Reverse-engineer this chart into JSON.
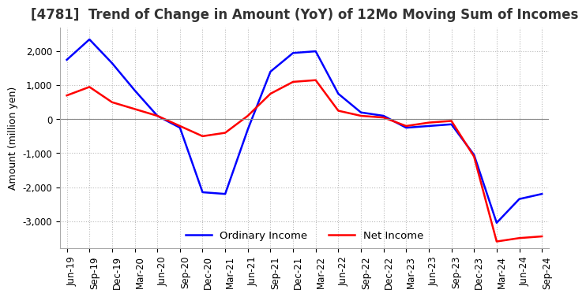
{
  "title": "[4781]  Trend of Change in Amount (YoY) of 12Mo Moving Sum of Incomes",
  "ylabel": "Amount (million yen)",
  "x_labels": [
    "Jun-19",
    "Sep-19",
    "Dec-19",
    "Mar-20",
    "Jun-20",
    "Sep-20",
    "Dec-20",
    "Mar-21",
    "Jun-21",
    "Sep-21",
    "Dec-21",
    "Mar-22",
    "Jun-22",
    "Sep-22",
    "Dec-22",
    "Mar-23",
    "Jun-23",
    "Sep-23",
    "Dec-23",
    "Mar-24",
    "Jun-24",
    "Sep-24"
  ],
  "ordinary_income": [
    1750,
    2350,
    1650,
    850,
    100,
    -250,
    -2150,
    -2200,
    -300,
    1400,
    1950,
    2000,
    750,
    200,
    100,
    -250,
    -200,
    -150,
    -1050,
    -3050,
    -2350,
    -2200
  ],
  "net_income": [
    700,
    950,
    500,
    300,
    100,
    -200,
    -500,
    -400,
    100,
    750,
    1100,
    1150,
    250,
    100,
    50,
    -200,
    -100,
    -50,
    -1100,
    -3600,
    -3500,
    -3450
  ],
  "ordinary_income_color": "#0000ff",
  "net_income_color": "#ff0000",
  "ylim": [
    -3800,
    2700
  ],
  "yticks": [
    -3000,
    -2000,
    -1000,
    0,
    1000,
    2000
  ],
  "background_color": "#ffffff",
  "grid_color": "#bbbbbb",
  "title_fontsize": 12,
  "label_fontsize": 9,
  "tick_fontsize": 8.5
}
